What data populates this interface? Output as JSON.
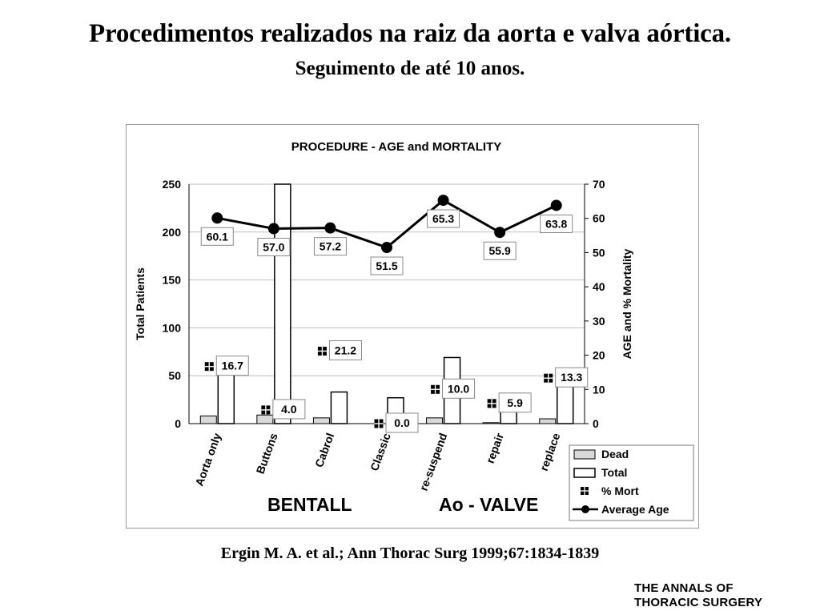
{
  "slide": {
    "title": "Procedimentos realizados na raiz da aorta e valva aórtica.",
    "subtitle": "Seguimento de até 10 anos.",
    "citation": "Ergin  M. A. et al.; Ann Thorac Surg 1999;67:1834-1839",
    "logo_line1": "THE ANNALS OF",
    "logo_line2": "THORACIC SURGERY"
  },
  "chart_data": {
    "type": "bar",
    "title": "PROCEDURE - AGE and MORTALITY",
    "ylabel_left": "Total Patients",
    "ylabel_right": "AGE  and % Mortality",
    "ylim_left": [
      0,
      250
    ],
    "ylim_right": [
      0,
      70
    ],
    "left_ticks": [
      "0",
      "50",
      "100",
      "150",
      "200",
      "250"
    ],
    "right_ticks": [
      "0",
      "10",
      "20",
      "30",
      "40",
      "50",
      "60",
      "70"
    ],
    "grid": true,
    "legend_position": "bottom-right",
    "categories": [
      "Aorta only",
      "Buttons",
      "Cabrol",
      "Classic",
      "re-suspend",
      "repair",
      "replace"
    ],
    "group_labels": [
      "BENTALL",
      "Ao - VALVE"
    ],
    "series": [
      {
        "name": "Dead",
        "axis": "left",
        "type": "bar",
        "values": [
          8,
          9,
          6,
          0,
          6,
          1,
          5
        ]
      },
      {
        "name": "Total",
        "axis": "left",
        "type": "bar",
        "values": [
          53,
          250,
          33,
          27,
          69,
          17,
          40
        ]
      },
      {
        "name": "% Mort",
        "axis": "right",
        "type": "marker",
        "values": [
          16.7,
          4.0,
          21.2,
          0.0,
          10.0,
          5.9,
          13.3
        ],
        "labels": [
          "16.7",
          "4.0",
          "21.2",
          "0.0",
          "10.0",
          "5.9",
          "13.3"
        ]
      },
      {
        "name": "Average Age",
        "axis": "right",
        "type": "line",
        "values": [
          60.1,
          57.0,
          57.2,
          51.5,
          65.3,
          55.9,
          63.8
        ],
        "labels": [
          "60.1",
          "57.0",
          "57.2",
          "51.5",
          "65.3",
          "55.9",
          "63.8"
        ]
      }
    ],
    "colors": {
      "dead_fill": "#d9d9d9",
      "total_fill": "#ffffff",
      "line": "#000000",
      "grid": "#c0c0c0"
    }
  }
}
